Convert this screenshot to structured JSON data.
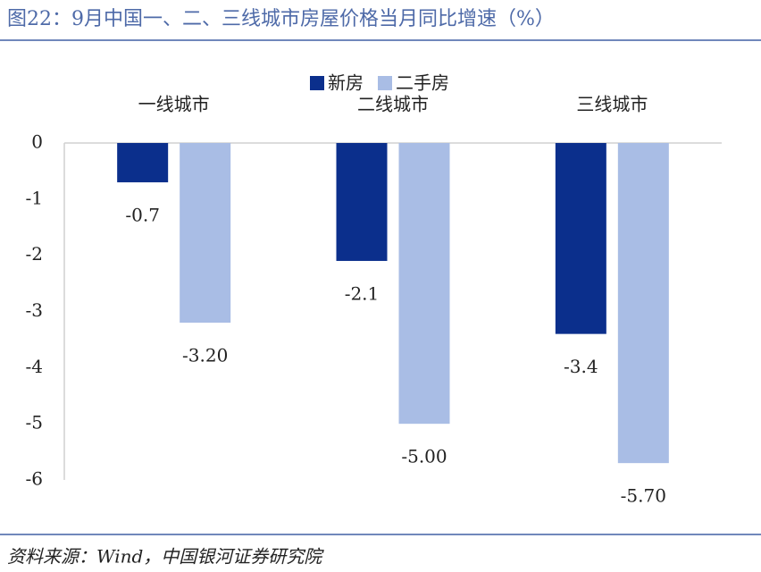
{
  "chart_data": {
    "type": "bar",
    "title": "图22：9月中国一、二、三线城市房屋价格当月同比增速（%）",
    "categories": [
      "一线城市",
      "二线城市",
      "三线城市"
    ],
    "series": [
      {
        "name": "新房",
        "color": "#0b2f8c",
        "values": [
          -0.7,
          -2.1,
          -3.4
        ]
      },
      {
        "name": "二手房",
        "color": "#a9bde5",
        "values": [
          -3.2,
          -5.0,
          -5.7
        ],
        "value_labels": [
          "-3.20",
          "-5.00",
          "-5.70"
        ]
      }
    ],
    "ylim": [
      -6,
      0
    ],
    "yticks": [
      0,
      -1,
      -2,
      -3,
      -4,
      -5,
      -6
    ],
    "legend": "top",
    "source": "资料来源：Wind，中国银河证券研究院"
  }
}
